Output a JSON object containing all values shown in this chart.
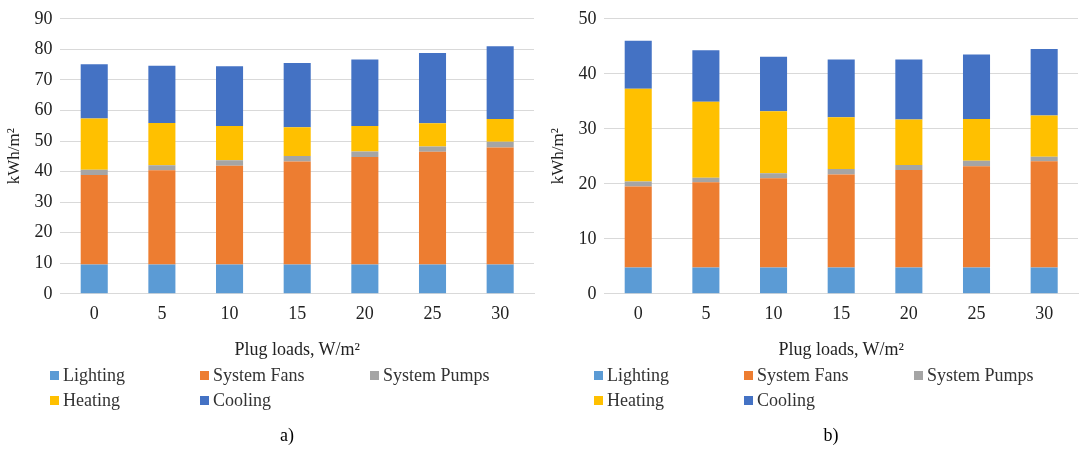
{
  "chart_data": [
    {
      "type": "bar",
      "stacked": true,
      "xlabel": "Plug loads, W/m²",
      "ylabel": "kWh/m²",
      "categories": [
        "0",
        "5",
        "10",
        "15",
        "20",
        "25",
        "30"
      ],
      "ylim": [
        0,
        90
      ],
      "yticks": [
        0,
        10,
        20,
        30,
        40,
        50,
        60,
        70,
        80,
        90
      ],
      "grid": "y",
      "legend": "bottom",
      "annotations": [
        "a)"
      ],
      "series": [
        {
          "name": "Lighting",
          "color": "#5b9bd5",
          "values": [
            9.6,
            9.6,
            9.6,
            9.6,
            9.6,
            9.6,
            9.6
          ]
        },
        {
          "name": "System Fans",
          "color": "#ed7d31",
          "values": [
            29.3,
            30.8,
            32.3,
            33.7,
            35.2,
            36.9,
            38.3
          ]
        },
        {
          "name": "System Pumps",
          "color": "#a5a5a5",
          "values": [
            1.7,
            1.7,
            1.8,
            1.8,
            1.8,
            1.7,
            1.9
          ]
        },
        {
          "name": "Heating",
          "color": "#ffc000",
          "values": [
            16.8,
            13.8,
            11.2,
            9.4,
            8.3,
            7.6,
            7.4
          ]
        },
        {
          "name": "Cooling",
          "color": "#4472c4",
          "values": [
            17.7,
            18.7,
            19.6,
            21.0,
            21.8,
            23.0,
            23.8
          ]
        }
      ]
    },
    {
      "type": "bar",
      "stacked": true,
      "xlabel": "Plug loads, W/m²",
      "ylabel": "kWh/m²",
      "categories": [
        "0",
        "5",
        "10",
        "15",
        "20",
        "25",
        "30"
      ],
      "ylim": [
        0,
        50
      ],
      "yticks": [
        0,
        10,
        20,
        30,
        40,
        50
      ],
      "grid": "y",
      "legend": "bottom",
      "annotations": [
        "b)"
      ],
      "series": [
        {
          "name": "Lighting",
          "color": "#5b9bd5",
          "values": [
            4.8,
            4.8,
            4.8,
            4.8,
            4.8,
            4.8,
            4.8
          ]
        },
        {
          "name": "System Fans",
          "color": "#ed7d31",
          "values": [
            14.7,
            15.5,
            16.2,
            16.9,
            17.7,
            18.4,
            19.3
          ]
        },
        {
          "name": "System Pumps",
          "color": "#a5a5a5",
          "values": [
            0.9,
            0.8,
            0.9,
            1.0,
            0.9,
            1.0,
            0.8
          ]
        },
        {
          "name": "Heating",
          "color": "#ffc000",
          "values": [
            16.9,
            13.8,
            11.3,
            9.4,
            8.3,
            7.6,
            7.5
          ]
        },
        {
          "name": "Cooling",
          "color": "#4472c4",
          "values": [
            8.7,
            9.4,
            9.9,
            10.5,
            10.9,
            11.7,
            12.1
          ]
        }
      ]
    }
  ]
}
